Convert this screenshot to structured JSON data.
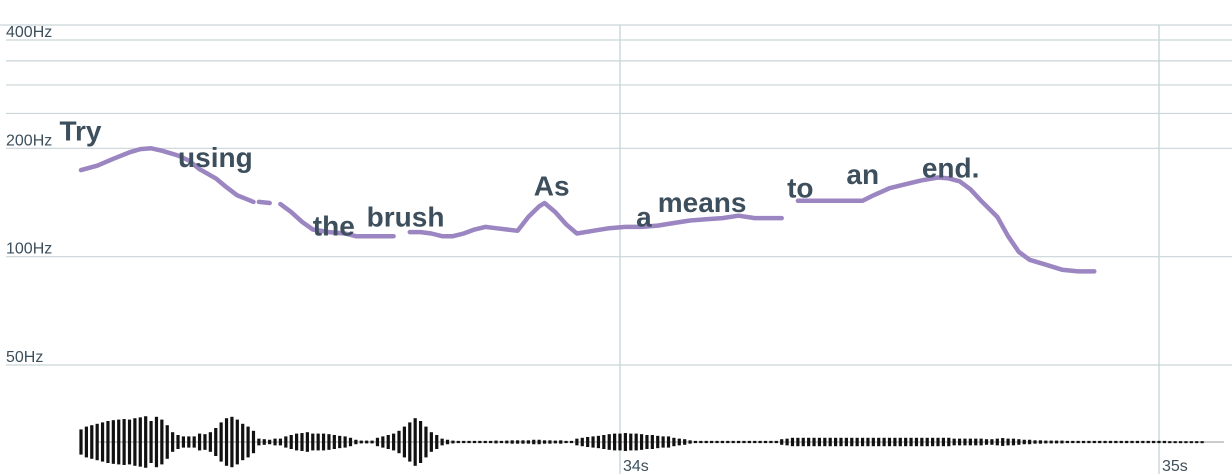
{
  "chart_data": {
    "type": "line",
    "title": "",
    "xlabel": "",
    "ylabel": "",
    "y_scale": "log",
    "ylim": [
      32,
      400
    ],
    "xlim": [
      32.86,
      35.13
    ],
    "grid": true,
    "y_ticks": [
      {
        "value": 400,
        "label": "400Hz"
      },
      {
        "value": 200,
        "label": "200Hz"
      },
      {
        "value": 100,
        "label": "100Hz"
      },
      {
        "value": 50,
        "label": "50Hz"
      }
    ],
    "y_minor_gridlines": [
      350,
      300,
      250
    ],
    "x_ticks": [
      {
        "value": 34,
        "label": "34s"
      },
      {
        "value": 35,
        "label": "35s"
      }
    ],
    "colors": {
      "pitch": "#9b86c2",
      "text": "#3d4f5c",
      "grid": "#c9d5d8",
      "waveform": "#111111"
    },
    "series": [
      {
        "segments": [
          [
            [
              33.0,
              174
            ],
            [
              33.03,
              179
            ],
            [
              33.06,
              187
            ],
            [
              33.09,
              195
            ],
            [
              33.11,
              199
            ],
            [
              33.13,
              200
            ],
            [
              33.15,
              197
            ],
            [
              33.18,
              191
            ],
            [
              33.2,
              185
            ],
            [
              33.22,
              175
            ],
            [
              33.25,
              165
            ],
            [
              33.27,
              156
            ],
            [
              33.29,
              148
            ],
            [
              33.31,
              144
            ],
            [
              33.32,
              142
            ]
          ],
          [
            [
              33.33,
              142
            ],
            [
              33.35,
              141
            ]
          ],
          [
            [
              33.37,
              140
            ],
            [
              33.39,
              133
            ],
            [
              33.41,
              125
            ],
            [
              33.43,
              119
            ],
            [
              33.46,
              117
            ],
            [
              33.49,
              116
            ],
            [
              33.51,
              114
            ],
            [
              33.53,
              114
            ],
            [
              33.55,
              114
            ],
            [
              33.57,
              114
            ],
            [
              33.58,
              114
            ]
          ],
          [
            [
              33.61,
              117
            ],
            [
              33.63,
              117
            ],
            [
              33.65,
              116
            ],
            [
              33.67,
              114
            ],
            [
              33.69,
              114
            ],
            [
              33.71,
              116
            ],
            [
              33.73,
              119
            ],
            [
              33.75,
              121
            ],
            [
              33.77,
              120
            ],
            [
              33.79,
              119
            ],
            [
              33.81,
              118
            ],
            [
              33.83,
              129
            ],
            [
              33.85,
              138
            ],
            [
              33.86,
              141
            ],
            [
              33.88,
              133
            ],
            [
              33.9,
              123
            ],
            [
              33.92,
              116
            ],
            [
              33.95,
              118
            ],
            [
              33.98,
              120
            ],
            [
              34.01,
              121
            ],
            [
              34.04,
              121
            ],
            [
              34.07,
              122
            ],
            [
              34.1,
              124
            ],
            [
              34.13,
              126
            ],
            [
              34.16,
              127
            ],
            [
              34.19,
              128
            ],
            [
              34.22,
              130
            ],
            [
              34.25,
              128
            ],
            [
              34.28,
              128
            ],
            [
              34.3,
              128
            ]
          ],
          [
            [
              34.33,
              143
            ],
            [
              34.36,
              143
            ],
            [
              34.39,
              143
            ],
            [
              34.42,
              143
            ],
            [
              34.45,
              143
            ],
            [
              34.47,
              148
            ],
            [
              34.5,
              155
            ],
            [
              34.53,
              159
            ],
            [
              34.56,
              163
            ],
            [
              34.59,
              166
            ],
            [
              34.61,
              165
            ],
            [
              34.63,
              162
            ],
            [
              34.65,
              154
            ],
            [
              34.67,
              143
            ],
            [
              34.7,
              129
            ],
            [
              34.72,
              114
            ],
            [
              34.74,
              103
            ],
            [
              34.76,
              98
            ],
            [
              34.79,
              95
            ],
            [
              34.82,
              92
            ],
            [
              34.85,
              91
            ],
            [
              34.88,
              91
            ]
          ]
        ]
      }
    ],
    "words": [
      {
        "text": "Try",
        "t": 32.96,
        "hz": 213
      },
      {
        "text": "using",
        "t": 33.18,
        "hz": 180
      },
      {
        "text": "the",
        "t": 33.43,
        "hz": 116
      },
      {
        "text": "brush",
        "t": 33.53,
        "hz": 123
      },
      {
        "text": "As",
        "t": 33.84,
        "hz": 150
      },
      {
        "text": "a",
        "t": 34.03,
        "hz": 123
      },
      {
        "text": "means",
        "t": 34.07,
        "hz": 135
      },
      {
        "text": "to",
        "t": 34.31,
        "hz": 148
      },
      {
        "text": "an",
        "t": 34.42,
        "hz": 161
      },
      {
        "text": "end.",
        "t": 34.56,
        "hz": 168
      }
    ],
    "waveform": [
      [
        33.0,
        0.45
      ],
      [
        33.01,
        0.55
      ],
      [
        33.02,
        0.6
      ],
      [
        33.03,
        0.65
      ],
      [
        33.04,
        0.7
      ],
      [
        33.05,
        0.75
      ],
      [
        33.06,
        0.78
      ],
      [
        33.07,
        0.8
      ],
      [
        33.08,
        0.82
      ],
      [
        33.09,
        0.8
      ],
      [
        33.1,
        0.85
      ],
      [
        33.11,
        0.88
      ],
      [
        33.12,
        0.92
      ],
      [
        33.13,
        0.75
      ],
      [
        33.14,
        0.9
      ],
      [
        33.15,
        0.8
      ],
      [
        33.16,
        0.6
      ],
      [
        33.17,
        0.35
      ],
      [
        33.18,
        0.25
      ],
      [
        33.19,
        0.2
      ],
      [
        33.2,
        0.2
      ],
      [
        33.21,
        0.2
      ],
      [
        33.22,
        0.3
      ],
      [
        33.23,
        0.28
      ],
      [
        33.24,
        0.35
      ],
      [
        33.25,
        0.5
      ],
      [
        33.26,
        0.7
      ],
      [
        33.27,
        0.85
      ],
      [
        33.28,
        0.9
      ],
      [
        33.29,
        0.8
      ],
      [
        33.3,
        0.65
      ],
      [
        33.31,
        0.55
      ],
      [
        33.32,
        0.4
      ],
      [
        33.33,
        0.12
      ],
      [
        33.34,
        0.1
      ],
      [
        33.35,
        0.08
      ],
      [
        33.36,
        0.12
      ],
      [
        33.37,
        0.12
      ],
      [
        33.38,
        0.2
      ],
      [
        33.39,
        0.25
      ],
      [
        33.4,
        0.3
      ],
      [
        33.41,
        0.32
      ],
      [
        33.42,
        0.35
      ],
      [
        33.43,
        0.3
      ],
      [
        33.44,
        0.3
      ],
      [
        33.45,
        0.3
      ],
      [
        33.46,
        0.28
      ],
      [
        33.47,
        0.25
      ],
      [
        33.48,
        0.22
      ],
      [
        33.49,
        0.2
      ],
      [
        33.5,
        0.15
      ],
      [
        33.51,
        0.08
      ],
      [
        33.52,
        0.05
      ],
      [
        33.53,
        0.05
      ],
      [
        33.54,
        0.05
      ],
      [
        33.55,
        0.15
      ],
      [
        33.56,
        0.2
      ],
      [
        33.57,
        0.25
      ],
      [
        33.58,
        0.3
      ],
      [
        33.59,
        0.4
      ],
      [
        33.6,
        0.55
      ],
      [
        33.61,
        0.7
      ],
      [
        33.62,
        0.85
      ],
      [
        33.63,
        0.75
      ],
      [
        33.64,
        0.55
      ],
      [
        33.65,
        0.35
      ],
      [
        33.66,
        0.25
      ],
      [
        33.67,
        0.12
      ],
      [
        33.68,
        0.08
      ],
      [
        33.69,
        0.05
      ],
      [
        33.7,
        0.04
      ],
      [
        33.71,
        0.04
      ],
      [
        33.72,
        0.04
      ],
      [
        33.73,
        0.04
      ],
      [
        33.74,
        0.04
      ],
      [
        33.75,
        0.04
      ],
      [
        33.76,
        0.04
      ],
      [
        33.77,
        0.05
      ],
      [
        33.78,
        0.04
      ],
      [
        33.79,
        0.05
      ],
      [
        33.8,
        0.06
      ],
      [
        33.81,
        0.06
      ],
      [
        33.82,
        0.06
      ],
      [
        33.83,
        0.06
      ],
      [
        33.84,
        0.08
      ],
      [
        33.85,
        0.08
      ],
      [
        33.86,
        0.06
      ],
      [
        33.87,
        0.06
      ],
      [
        33.88,
        0.05
      ],
      [
        33.89,
        0.06
      ],
      [
        33.9,
        0.04
      ],
      [
        33.91,
        0.04
      ],
      [
        33.92,
        0.12
      ],
      [
        33.93,
        0.15
      ],
      [
        33.94,
        0.18
      ],
      [
        33.95,
        0.2
      ],
      [
        33.96,
        0.22
      ],
      [
        33.97,
        0.25
      ],
      [
        33.98,
        0.28
      ],
      [
        33.99,
        0.3
      ],
      [
        34.0,
        0.3
      ],
      [
        34.01,
        0.32
      ],
      [
        34.02,
        0.3
      ],
      [
        34.03,
        0.3
      ],
      [
        34.04,
        0.28
      ],
      [
        34.05,
        0.25
      ],
      [
        34.06,
        0.25
      ],
      [
        34.07,
        0.22
      ],
      [
        34.08,
        0.2
      ],
      [
        34.09,
        0.2
      ],
      [
        34.1,
        0.15
      ],
      [
        34.11,
        0.12
      ],
      [
        34.12,
        0.1
      ],
      [
        34.13,
        0.06
      ],
      [
        34.14,
        0.04
      ],
      [
        34.15,
        0.04
      ],
      [
        34.16,
        0.04
      ],
      [
        34.17,
        0.04
      ],
      [
        34.18,
        0.04
      ],
      [
        34.19,
        0.04
      ],
      [
        34.2,
        0.04
      ],
      [
        34.21,
        0.04
      ],
      [
        34.22,
        0.04
      ],
      [
        34.23,
        0.04
      ],
      [
        34.24,
        0.04
      ],
      [
        34.25,
        0.04
      ],
      [
        34.26,
        0.04
      ],
      [
        34.27,
        0.04
      ],
      [
        34.28,
        0.04
      ],
      [
        34.29,
        0.04
      ],
      [
        34.3,
        0.1
      ],
      [
        34.31,
        0.12
      ],
      [
        34.32,
        0.15
      ],
      [
        34.33,
        0.15
      ],
      [
        34.34,
        0.15
      ],
      [
        34.35,
        0.15
      ],
      [
        34.36,
        0.15
      ],
      [
        34.37,
        0.15
      ],
      [
        34.38,
        0.15
      ],
      [
        34.39,
        0.15
      ],
      [
        34.4,
        0.15
      ],
      [
        34.41,
        0.15
      ],
      [
        34.42,
        0.15
      ],
      [
        34.43,
        0.15
      ],
      [
        34.44,
        0.15
      ],
      [
        34.45,
        0.15
      ],
      [
        34.46,
        0.15
      ],
      [
        34.47,
        0.15
      ],
      [
        34.48,
        0.15
      ],
      [
        34.49,
        0.15
      ],
      [
        34.5,
        0.15
      ],
      [
        34.51,
        0.15
      ],
      [
        34.52,
        0.15
      ],
      [
        34.53,
        0.15
      ],
      [
        34.54,
        0.15
      ],
      [
        34.55,
        0.15
      ],
      [
        34.56,
        0.15
      ],
      [
        34.57,
        0.15
      ],
      [
        34.58,
        0.15
      ],
      [
        34.59,
        0.15
      ],
      [
        34.6,
        0.15
      ],
      [
        34.61,
        0.15
      ],
      [
        34.62,
        0.12
      ],
      [
        34.63,
        0.12
      ],
      [
        34.64,
        0.12
      ],
      [
        34.65,
        0.12
      ],
      [
        34.66,
        0.12
      ],
      [
        34.67,
        0.12
      ],
      [
        34.68,
        0.1
      ],
      [
        34.69,
        0.1
      ],
      [
        34.7,
        0.12
      ],
      [
        34.71,
        0.14
      ],
      [
        34.72,
        0.12
      ],
      [
        34.73,
        0.12
      ],
      [
        34.74,
        0.1
      ],
      [
        34.75,
        0.08
      ],
      [
        34.76,
        0.08
      ],
      [
        34.77,
        0.06
      ],
      [
        34.78,
        0.06
      ],
      [
        34.79,
        0.05
      ],
      [
        34.8,
        0.05
      ],
      [
        34.81,
        0.05
      ],
      [
        34.82,
        0.05
      ],
      [
        34.83,
        0.04
      ],
      [
        34.84,
        0.04
      ],
      [
        34.85,
        0.04
      ],
      [
        34.86,
        0.04
      ],
      [
        34.87,
        0.04
      ],
      [
        34.88,
        0.04
      ],
      [
        34.89,
        0.04
      ],
      [
        34.9,
        0.04
      ],
      [
        34.91,
        0.04
      ],
      [
        34.92,
        0.04
      ],
      [
        34.93,
        0.04
      ],
      [
        34.94,
        0.04
      ],
      [
        34.95,
        0.04
      ],
      [
        34.96,
        0.04
      ],
      [
        34.97,
        0.04
      ],
      [
        34.98,
        0.04
      ],
      [
        34.99,
        0.04
      ],
      [
        35.0,
        0.04
      ],
      [
        35.01,
        0.04
      ],
      [
        35.02,
        0.03
      ],
      [
        35.03,
        0.03
      ],
      [
        35.04,
        0.03
      ],
      [
        35.05,
        0.03
      ],
      [
        35.06,
        0.03
      ],
      [
        35.07,
        0.03
      ],
      [
        35.08,
        0.03
      ]
    ]
  }
}
